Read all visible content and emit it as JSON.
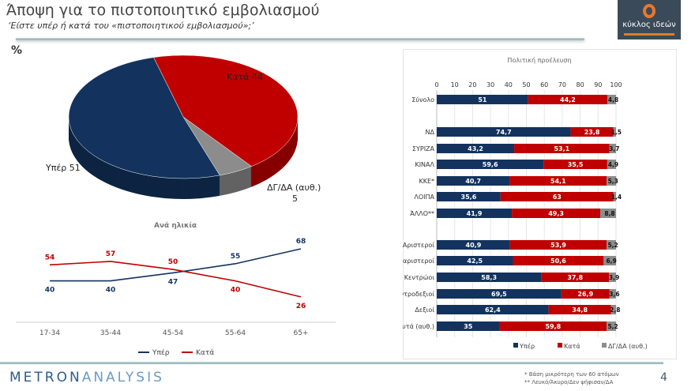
{
  "header": {
    "title": "Άποψη για το πιστοποιητικό εμβολιασμού",
    "subtitle": "‘Είστε υπέρ ή κατά του «πιστοποιητικού εμβολιασμού»;’",
    "percent_sign": "%"
  },
  "logo": {
    "text": "κύκλος ιδεών"
  },
  "colors": {
    "yper": "#13335e",
    "kata": "#c00000",
    "dk": "#8c8c8c"
  },
  "chart_data": [
    {
      "type": "pie",
      "slices": [
        {
          "label": "Κατά",
          "value": 44,
          "color": "#c00000"
        },
        {
          "label": "ΔΓ/ΔΑ (αυθ.)",
          "value": 5,
          "color": "#8c8c8c"
        },
        {
          "label": "Υπέρ",
          "value": 51,
          "color": "#13335e"
        }
      ],
      "labels": [
        "Κατά 44",
        "ΔΓ/ΔΑ (αυθ.)",
        "5",
        "Υπέρ 51"
      ]
    },
    {
      "type": "line",
      "title": "Ανά ηλικία",
      "categories": [
        "17-34",
        "35-44",
        "45-54",
        "55-64",
        "65+"
      ],
      "series": [
        {
          "name": "Υπέρ",
          "values": [
            40,
            40,
            47,
            55,
            68
          ],
          "color": "#13335e"
        },
        {
          "name": "Κατά",
          "values": [
            54,
            57,
            50,
            40,
            26
          ],
          "color": "#c00000"
        }
      ],
      "legend": "bottom",
      "grid": false
    },
    {
      "type": "bar",
      "stacked": true,
      "orientation": "horizontal",
      "title": "Πολιτική προέλευση",
      "xlim": [
        0,
        100
      ],
      "ticks": [
        "0",
        "10",
        "20",
        "30",
        "40",
        "50",
        "60",
        "70",
        "80",
        "90",
        "100"
      ],
      "categories": [
        "Σύνολο",
        "ΝΔ",
        "ΣΥΡΙΖΑ",
        "ΚΙΝΑΛ",
        "ΚΚΕ*",
        "ΛΟΙΠΑ",
        "ΆΛΛΟ**",
        "Αριστεροί",
        "Κεντροαριστεροί",
        "Κεντρώοι",
        "Κεντροδεξιοί",
        "Δεξιοί",
        "Τίποτα από αυτά (αυθ.)"
      ],
      "series": [
        {
          "name": "Υπέρ",
          "color": "#13335e",
          "values": [
            51,
            74.7,
            43.2,
            59.6,
            40.7,
            35.6,
            41.9,
            40.9,
            42.5,
            58.3,
            69.5,
            62.4,
            35
          ]
        },
        {
          "name": "Κατά",
          "color": "#c00000",
          "values": [
            44.2,
            23.8,
            53.1,
            35.5,
            54.1,
            63,
            49.3,
            53.9,
            50.6,
            37.8,
            26.9,
            34.8,
            59.8
          ]
        },
        {
          "name": "ΔΓ/ΔΑ (αυθ.)",
          "color": "#8c8c8c",
          "values": [
            4.8,
            1.5,
            3.7,
            4.9,
            5.3,
            1.4,
            8.8,
            5.2,
            6.9,
            3.9,
            3.6,
            2.8,
            5.2
          ]
        }
      ],
      "legend": "bottom",
      "grid": true
    }
  ],
  "footer": {
    "brand_a": "METRON",
    "brand_b": "ANALYSIS",
    "note1": "*  Βάση μικρότερη των 60 ατόμων",
    "note2": "** Λευκό/Άκυρο/Δεν ψήφισαν/ΔΑ",
    "page": "4"
  }
}
